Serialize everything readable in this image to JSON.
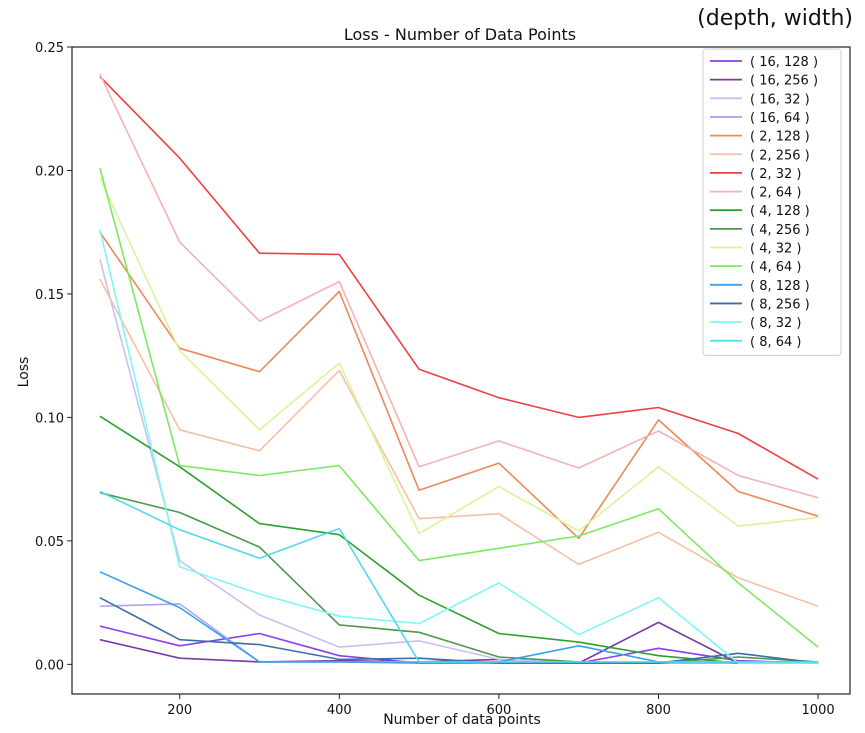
{
  "corner_note": "(depth, width)",
  "chart_data": {
    "type": "line",
    "title": "Loss - Number of Data Points",
    "xlabel": "Number of data points",
    "ylabel": "Loss",
    "xlim": [
      65,
      1040
    ],
    "ylim": [
      -0.012,
      0.25
    ],
    "xticks": [
      200,
      400,
      600,
      800,
      1000
    ],
    "xtick_labels": [
      "200",
      "400",
      "600",
      "800",
      "1000"
    ],
    "yticks": [
      0.0,
      0.05,
      0.1,
      0.15,
      0.2,
      0.25
    ],
    "ytick_labels": [
      "0.00",
      "0.05",
      "0.10",
      "0.15",
      "0.20",
      "0.25"
    ],
    "grid": false,
    "legend_position": "top-right",
    "x": [
      100,
      200,
      300,
      400,
      500,
      600,
      700,
      800,
      900,
      1000
    ],
    "series": [
      {
        "name": "( 16, 128 )",
        "color": "#8a3ff0",
        "values": [
          0.0155,
          0.0075,
          0.0125,
          0.0035,
          0.0005,
          0.0005,
          0.0005,
          0.0065,
          0.0015,
          0.0005
        ]
      },
      {
        "name": "( 16, 256 )",
        "color": "#7a3aa6",
        "values": [
          0.01,
          0.0025,
          0.001,
          0.0015,
          0.001,
          0.002,
          0.0005,
          0.017,
          0.0005,
          0.0005
        ]
      },
      {
        "name": "( 16, 32 )",
        "color": "#c8bff3",
        "values": [
          0.164,
          0.042,
          0.02,
          0.007,
          0.0095,
          0.002,
          0.0005,
          0.0005,
          0.0005,
          0.0005
        ]
      },
      {
        "name": "( 16, 64 )",
        "color": "#b3a3f5",
        "values": [
          0.0235,
          0.0245,
          0.001,
          0.001,
          0.001,
          0.0005,
          0.0005,
          0.0005,
          0.0005,
          0.0005
        ]
      },
      {
        "name": "( 2, 128 )",
        "color": "#f0875a",
        "values": [
          0.175,
          0.128,
          0.1185,
          0.151,
          0.0705,
          0.0815,
          0.051,
          0.099,
          0.07,
          0.06
        ]
      },
      {
        "name": "( 2, 256 )",
        "color": "#f7c0a4",
        "values": [
          0.156,
          0.095,
          0.0865,
          0.119,
          0.059,
          0.061,
          0.0405,
          0.0535,
          0.035,
          0.0235
        ]
      },
      {
        "name": "( 2, 32 )",
        "color": "#ee4040",
        "values": [
          0.238,
          0.205,
          0.1665,
          0.166,
          0.1195,
          0.108,
          0.1,
          0.104,
          0.0935,
          0.075
        ]
      },
      {
        "name": "( 2, 64 )",
        "color": "#f6b3b3",
        "values": [
          0.239,
          0.171,
          0.139,
          0.155,
          0.08,
          0.0905,
          0.0795,
          0.0945,
          0.0765,
          0.0675
        ]
      },
      {
        "name": "( 4, 128 )",
        "color": "#2ea02e",
        "values": [
          0.1005,
          0.08,
          0.057,
          0.0525,
          0.028,
          0.0125,
          0.009,
          0.0035,
          0.0005,
          0.0005
        ]
      },
      {
        "name": "( 4, 256 )",
        "color": "#4a9a4a",
        "values": [
          0.0695,
          0.0615,
          0.0475,
          0.016,
          0.013,
          0.003,
          0.001,
          0.0005,
          0.003,
          0.001
        ]
      },
      {
        "name": "( 4, 32 )",
        "color": "#d8f59a",
        "values": [
          0.197,
          0.127,
          0.095,
          0.122,
          0.053,
          0.072,
          0.054,
          0.08,
          0.056,
          0.0595
        ]
      },
      {
        "name": "( 4, 64 )",
        "color": "#7ee860",
        "values": [
          0.201,
          0.0805,
          0.0765,
          0.0805,
          0.042,
          0.047,
          0.052,
          0.063,
          0.033,
          0.007
        ]
      },
      {
        "name": "( 8, 128 )",
        "color": "#3aa0ee",
        "values": [
          0.0375,
          0.023,
          0.001,
          0.001,
          0.0005,
          0.001,
          0.0075,
          0.001,
          0.001,
          0.001
        ]
      },
      {
        "name": "( 8, 256 )",
        "color": "#3b6fa8",
        "values": [
          0.027,
          0.01,
          0.008,
          0.002,
          0.0025,
          0.0005,
          0.0005,
          0.0005,
          0.0045,
          0.0005
        ]
      },
      {
        "name": "( 8, 32 )",
        "color": "#7ff7f3",
        "values": [
          0.176,
          0.0395,
          0.0285,
          0.0195,
          0.0165,
          0.033,
          0.012,
          0.027,
          0.0005,
          0.0005
        ]
      },
      {
        "name": "( 8, 64 )",
        "color": "#4fd9ee",
        "values": [
          0.07,
          0.0545,
          0.043,
          0.055,
          0.001,
          0.001,
          0.001,
          0.001,
          0.001,
          0.001
        ]
      }
    ]
  }
}
